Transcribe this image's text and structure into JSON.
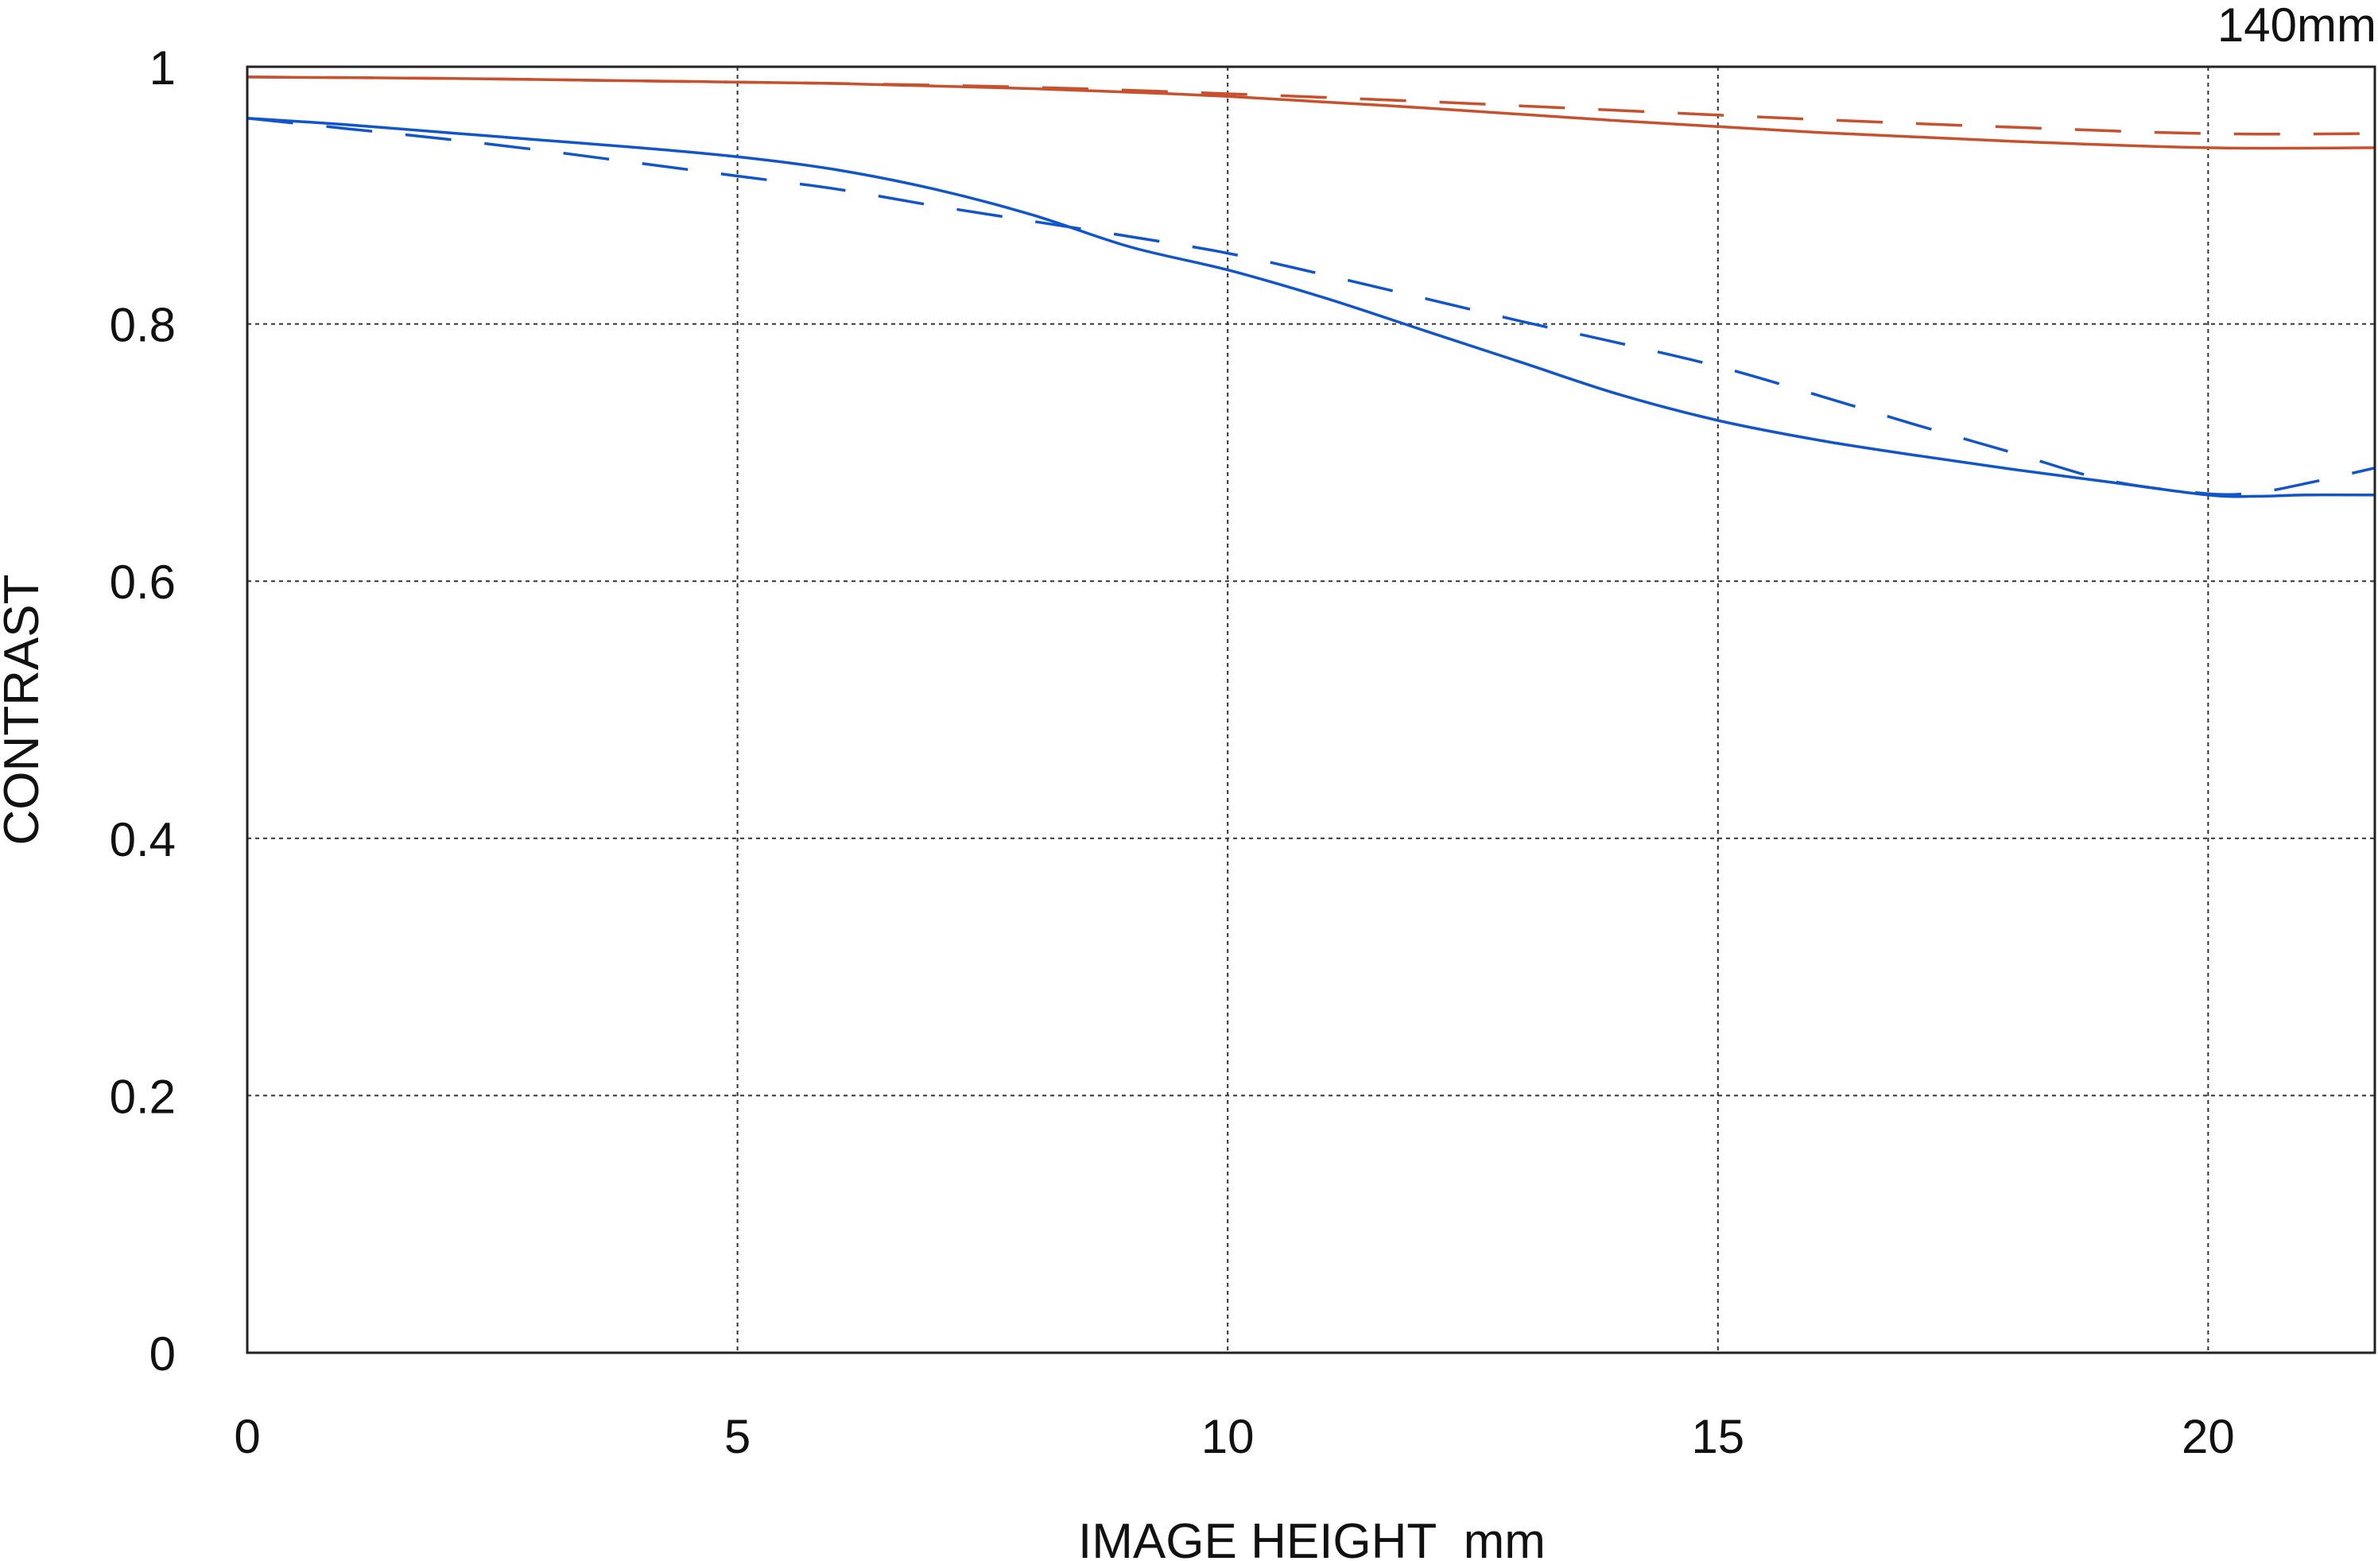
{
  "chart_data": {
    "type": "line",
    "title": "",
    "corner_label": "140mm",
    "xlabel": "IMAGE HEIGHT  mm",
    "ylabel": "CONTRAST",
    "xlim": [
      0,
      21.7
    ],
    "ylim": [
      0,
      1
    ],
    "x_ticks": [
      0,
      5,
      10,
      15,
      20
    ],
    "x_tick_labels": [
      "0",
      "5",
      "10",
      "15",
      "20"
    ],
    "y_ticks": [
      0,
      0.2,
      0.4,
      0.6,
      0.8,
      1
    ],
    "y_tick_labels": [
      "0",
      "0.2",
      "0.4",
      "0.6",
      "0.8",
      "1"
    ],
    "grid": true,
    "legend": "none",
    "series": [
      {
        "color": "#c8502d",
        "dash": "solid",
        "x": [
          0,
          2,
          4,
          6,
          8,
          10,
          12,
          14,
          16,
          18,
          20,
          21.7
        ],
        "y": [
          0.992,
          0.991,
          0.989,
          0.987,
          0.983,
          0.977,
          0.968,
          0.958,
          0.949,
          0.942,
          0.937,
          0.937
        ]
      },
      {
        "color": "#c8502d",
        "dash": "dashed",
        "x": [
          0,
          2,
          4,
          6,
          8,
          10,
          12,
          14,
          16,
          18,
          20,
          21.7
        ],
        "y": [
          0.992,
          0.991,
          0.989,
          0.987,
          0.984,
          0.979,
          0.973,
          0.966,
          0.959,
          0.953,
          0.948,
          0.948
        ]
      },
      {
        "color": "#1155cc",
        "dash": "solid",
        "x": [
          0,
          1,
          2,
          3,
          4,
          5,
          6,
          7,
          8,
          9,
          10,
          11,
          12,
          13,
          14,
          15,
          16,
          17,
          18,
          19,
          20,
          20.5,
          21,
          21.7
        ],
        "y": [
          0.96,
          0.955,
          0.949,
          0.943,
          0.937,
          0.93,
          0.92,
          0.905,
          0.885,
          0.86,
          0.842,
          0.82,
          0.795,
          0.77,
          0.745,
          0.725,
          0.71,
          0.698,
          0.687,
          0.677,
          0.667,
          0.666,
          0.667,
          0.667
        ]
      },
      {
        "color": "#1155cc",
        "dash": "dashed",
        "x": [
          0,
          1,
          2,
          3,
          4,
          5,
          6,
          7,
          8,
          9,
          10,
          11,
          12,
          13,
          14,
          15,
          16,
          17,
          18,
          19,
          20,
          20.5,
          21,
          21.7
        ],
        "y": [
          0.96,
          0.952,
          0.944,
          0.935,
          0.925,
          0.915,
          0.905,
          0.892,
          0.88,
          0.868,
          0.855,
          0.838,
          0.82,
          0.802,
          0.785,
          0.767,
          0.745,
          0.722,
          0.7,
          0.678,
          0.668,
          0.669,
          0.676,
          0.688
        ]
      }
    ]
  }
}
